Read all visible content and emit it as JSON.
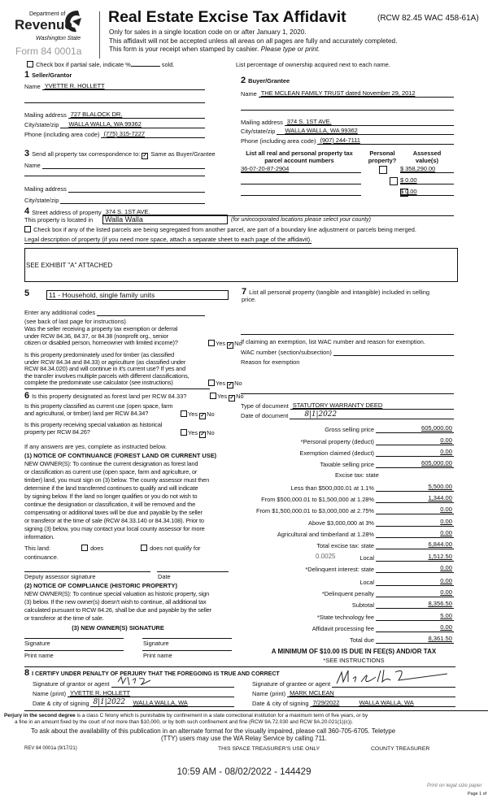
{
  "header": {
    "dept": "Department of",
    "revenue": "Revenue",
    "state": "Washington State",
    "form": "Form 84 0001a",
    "title": "Real Estate Excise Tax Affidavit",
    "rcw": "(RCW 82.45 WAC 458-61A)",
    "line1": "Only for sales in a single location code on or after January 1, 2020.",
    "line2": "This affidavit will not be accepted unless all areas on all pages are fully and accurately completed.",
    "line3": "This form is your receipt when stamped by cashier.",
    "line3_italic": "Please type or print."
  },
  "partial_sale": {
    "label": "Check box if partial sale, indicate %",
    "suffix": "sold.",
    "checked": false
  },
  "ownership_note": "List percentage of ownership acquired next to each name.",
  "seller": {
    "num": "1",
    "title": "Seller/Grantor",
    "name_label": "Name",
    "name": "YVETTE R. HOLLETT",
    "mail_label": "Mailing address",
    "mail": "727 BLALOCK DR.",
    "city_label": "City/state/zip",
    "city": "WALLA WALLA, WA 99362",
    "phone_label": "Phone (including area code)",
    "phone": "(775) 315-7227"
  },
  "buyer": {
    "num": "2",
    "title": "Buyer/Grantee",
    "name_label": "Name",
    "name": "THE MCLEAN FAMILY TRUST dated November 29, 2012",
    "mail_label": "Mailing address",
    "mail": "374 S. 1ST AVE.",
    "city_label": "City/state/zip",
    "city": "WALLA WALLA, WA 99362",
    "phone_label": "Phone (including area code)",
    "phone": "(907) 244-7111"
  },
  "correspondence": {
    "num": "3",
    "label": "Send all property tax correspondence to:",
    "same_label": "Same as Buyer/Grantee",
    "same_checked": true,
    "name_label": "Name",
    "mail_label": "Mailing address",
    "city_label": "City/state/zip"
  },
  "parcels": {
    "col1": "List all real and personal property tax",
    "col1b": "parcel account numbers",
    "col2": "Personal",
    "col2b": "property?",
    "col3": "Assessed",
    "col3b": "value(s)",
    "rows": [
      {
        "number": "36-07-20-87-2904",
        "personal": false,
        "value": "$ 358,290.00"
      },
      {
        "number": "",
        "personal": false,
        "value": "$ 0.00"
      },
      {
        "number": "",
        "personal": false,
        "value": "$ 0.00"
      }
    ]
  },
  "property": {
    "num": "4",
    "street_label": "Street address of property",
    "street": "374 S. 1ST AVE.",
    "located_label": "This property is located in",
    "located": "Walla Walla",
    "located_note": "(for unincorporated locations please select your county)",
    "segregate_label": "Check box if any of the listed parcels are being segregated from another parcel, are part of a boundary line adjustment or parcels being merged.",
    "legal_label": "Legal description of property (if you need more space, attach a separate sheet to each page of the affidavit).",
    "legal": "SEE EXHIBIT \"A\" ATTACHED"
  },
  "section5": {
    "num": "5",
    "use_code": "11 - Household, single family units",
    "codes_label": "Enter any additional codes",
    "codes_note": "(see back of last page for instructions)",
    "q1": [
      "Was the seller receiving a property tax exemption or deferral",
      "under RCW 84.36, 84.37, or 84.38 (nonprofit org., senior",
      "citizen or disabled person, homeowner with limited income)?"
    ],
    "q2": [
      "Is this property predominately used for timber (as classified",
      "under RCW 84.34 and 84.33) or agriculture (as classified under",
      "RCW 84.34.020) and will continue in it's current use? If yes and",
      "the transfer involves multiple parcels with different classifications,",
      "complete the predominate use calculator (see instructions)"
    ],
    "yes": "Yes",
    "no": "No"
  },
  "section6": {
    "num": "6",
    "q1": "Is this property designated as forest land per RCW 84.33?",
    "q2": [
      "Is this property classified as current use (open space, farm",
      "and agricultural, or timber) land per RCW 84.34?"
    ],
    "q3": [
      "Is this property receiving special valuation as historical",
      "property per RCW 84.26?"
    ],
    "if_yes": "If any answers are yes, complete as instructed below.",
    "notice1_title": "(1) NOTICE OF CONTINUANCE (FOREST LAND OR CURRENT USE)",
    "notice1": [
      "NEW OWNER(S): To continue the current designation as forest land",
      "or classification as current use (open space, farm and agriculture, or",
      "timber) land, you must sign on (3) below. The county assessor must then",
      "determine if the land transferred continues to qualify and will indicate",
      "by signing below. If the land no longer qualifies or you do not wish to",
      "continue the designation or classification, it will be removed and the",
      "compensating or additional taxes will be due and payable by the seller",
      "or transferor at the time of sale (RCW 84.33.140 or 84.34.108). Prior to",
      "signing (3) below, you may contact your local county assessor for more",
      "information."
    ],
    "this_land": "This land:",
    "does": "does",
    "does_not": "does not qualify for",
    "continuance": "continuance.",
    "deputy": "Deputy assessor signature",
    "date": "Date",
    "notice2_title": "(2) NOTICE OF COMPLIANCE (HISTORIC PROPERTY)",
    "notice2": [
      "NEW OWNER(S): To continue special valuation as historic property, sign",
      "(3) below. If the new owner(s) doesn't wish to continue, all additional tax",
      "calculated pursuant to RCW 84.26, shall be due and payable by the seller",
      "or transferor at the time of sale."
    ],
    "sig_title": "(3) NEW OWNER(S) SIGNATURE",
    "signature": "Signature",
    "print_name": "Print name"
  },
  "section7": {
    "num": "7",
    "label": "List all personal property (tangible and intangible) included in selling",
    "label2": "price.",
    "exempt": "If claiming an exemption, list WAC number and reason for exemption.",
    "wac_label": "WAC number (section/subsection)",
    "reason_label": "Reason for exemption",
    "doc_type_label": "Type of document",
    "doc_type": "STATUTORY WARRANTY DEED",
    "doc_date_label": "Date of document",
    "doc_date": "8|1|2022"
  },
  "tax": {
    "rows": [
      {
        "label": "Gross selling price",
        "value": "605,000.00"
      },
      {
        "label": "*Personal property (deduct)",
        "value": "0.00"
      },
      {
        "label": "Exemption claimed (deduct)",
        "value": "0.00"
      },
      {
        "label": "Taxable selling price",
        "value": "605,000.00"
      },
      {
        "label": "Excise tax: state",
        "value": null
      },
      {
        "label": "Less than $500,000.01 at 1.1%",
        "value": "5,500.00"
      },
      {
        "label": "From $500,000.01 to $1,500,000 at 1.28%",
        "value": "1,344.00"
      },
      {
        "label": "From $1,500,000.01 to $3,000,000 at 2.75%",
        "value": "0.00"
      },
      {
        "label": "Above $3,000,000 at 3%",
        "value": "0.00"
      },
      {
        "label": "Agricultural and timberland at 1.28%",
        "value": "0.00"
      },
      {
        "label": "Total excise tax: state",
        "value": "6,844.00"
      },
      {
        "label": "Local",
        "value": "1,512.50",
        "rate": "0.0025"
      },
      {
        "label": "*Delinquent interest: state",
        "value": "0.00"
      },
      {
        "label": "Local",
        "value": "0.00"
      },
      {
        "label": "*Delinquent penalty",
        "value": "0.00"
      },
      {
        "label": "Subtotal",
        "value": "8,356.50"
      },
      {
        "label": "*State technology fee",
        "value": "5.00"
      },
      {
        "label": "Affidavit processing fee",
        "value": "0.00"
      },
      {
        "label": "Total due",
        "value": "8,361.50"
      }
    ],
    "minimum": "A MINIMUM OF $10.00 IS DUE IN FEE(S) AND/OR TAX",
    "see": "*SEE INSTRUCTIONS"
  },
  "section8": {
    "num": "8",
    "certify": "I CERTIFY UNDER PENALTY OF PERJURY THAT THE FOREGOING IS TRUE AND CORRECT",
    "grantor_sig_label": "Signature of grantor or agent",
    "grantor_name_label": "Name (print)",
    "grantor_name": "YVETTE R. HOLLETT",
    "grantor_date_label": "Date & city of signing",
    "grantor_date": "8|1|2022",
    "grantor_city": "WALLA WALLA, WA",
    "grantee_sig_label": "Signature of grantee or agent",
    "grantee_name_label": "Name (print)",
    "grantee_name": "MARK MCLEAN",
    "grantee_date_label": "Date & city of signing",
    "grantee_date": "7/29/2022",
    "grantee_city": "WALLA WALLA, WA"
  },
  "footer": {
    "perjury_bold": "Perjury in the second degree",
    "perjury1": " is a class C felony which is punishable by confinement in a state correctional institution for a maximum term of five years, or by",
    "perjury2": "a fine in an amount fixed by the court of not more than $10,000, or by both such confinement and fine (RCW 9A.72.030 and RCW 9A.20.021(1)(c)).",
    "alt1": "To ask about the availability of this publication in an alternate format for the visually impaired, please call 360-705-6705. Teletype",
    "alt2": "(TTY) users may use the WA Relay Service by calling 711.",
    "rev": "REV 84 0001a  (9/17/21)",
    "treasurer_only": "THIS SPACE TREASURER'S USE ONLY",
    "county_treasurer": "COUNTY TREASURER",
    "stamp": "10:59 AM - 08/02/2022 - 144429",
    "legal_size": "Print on legal size paper",
    "page": "Page 1 of"
  }
}
